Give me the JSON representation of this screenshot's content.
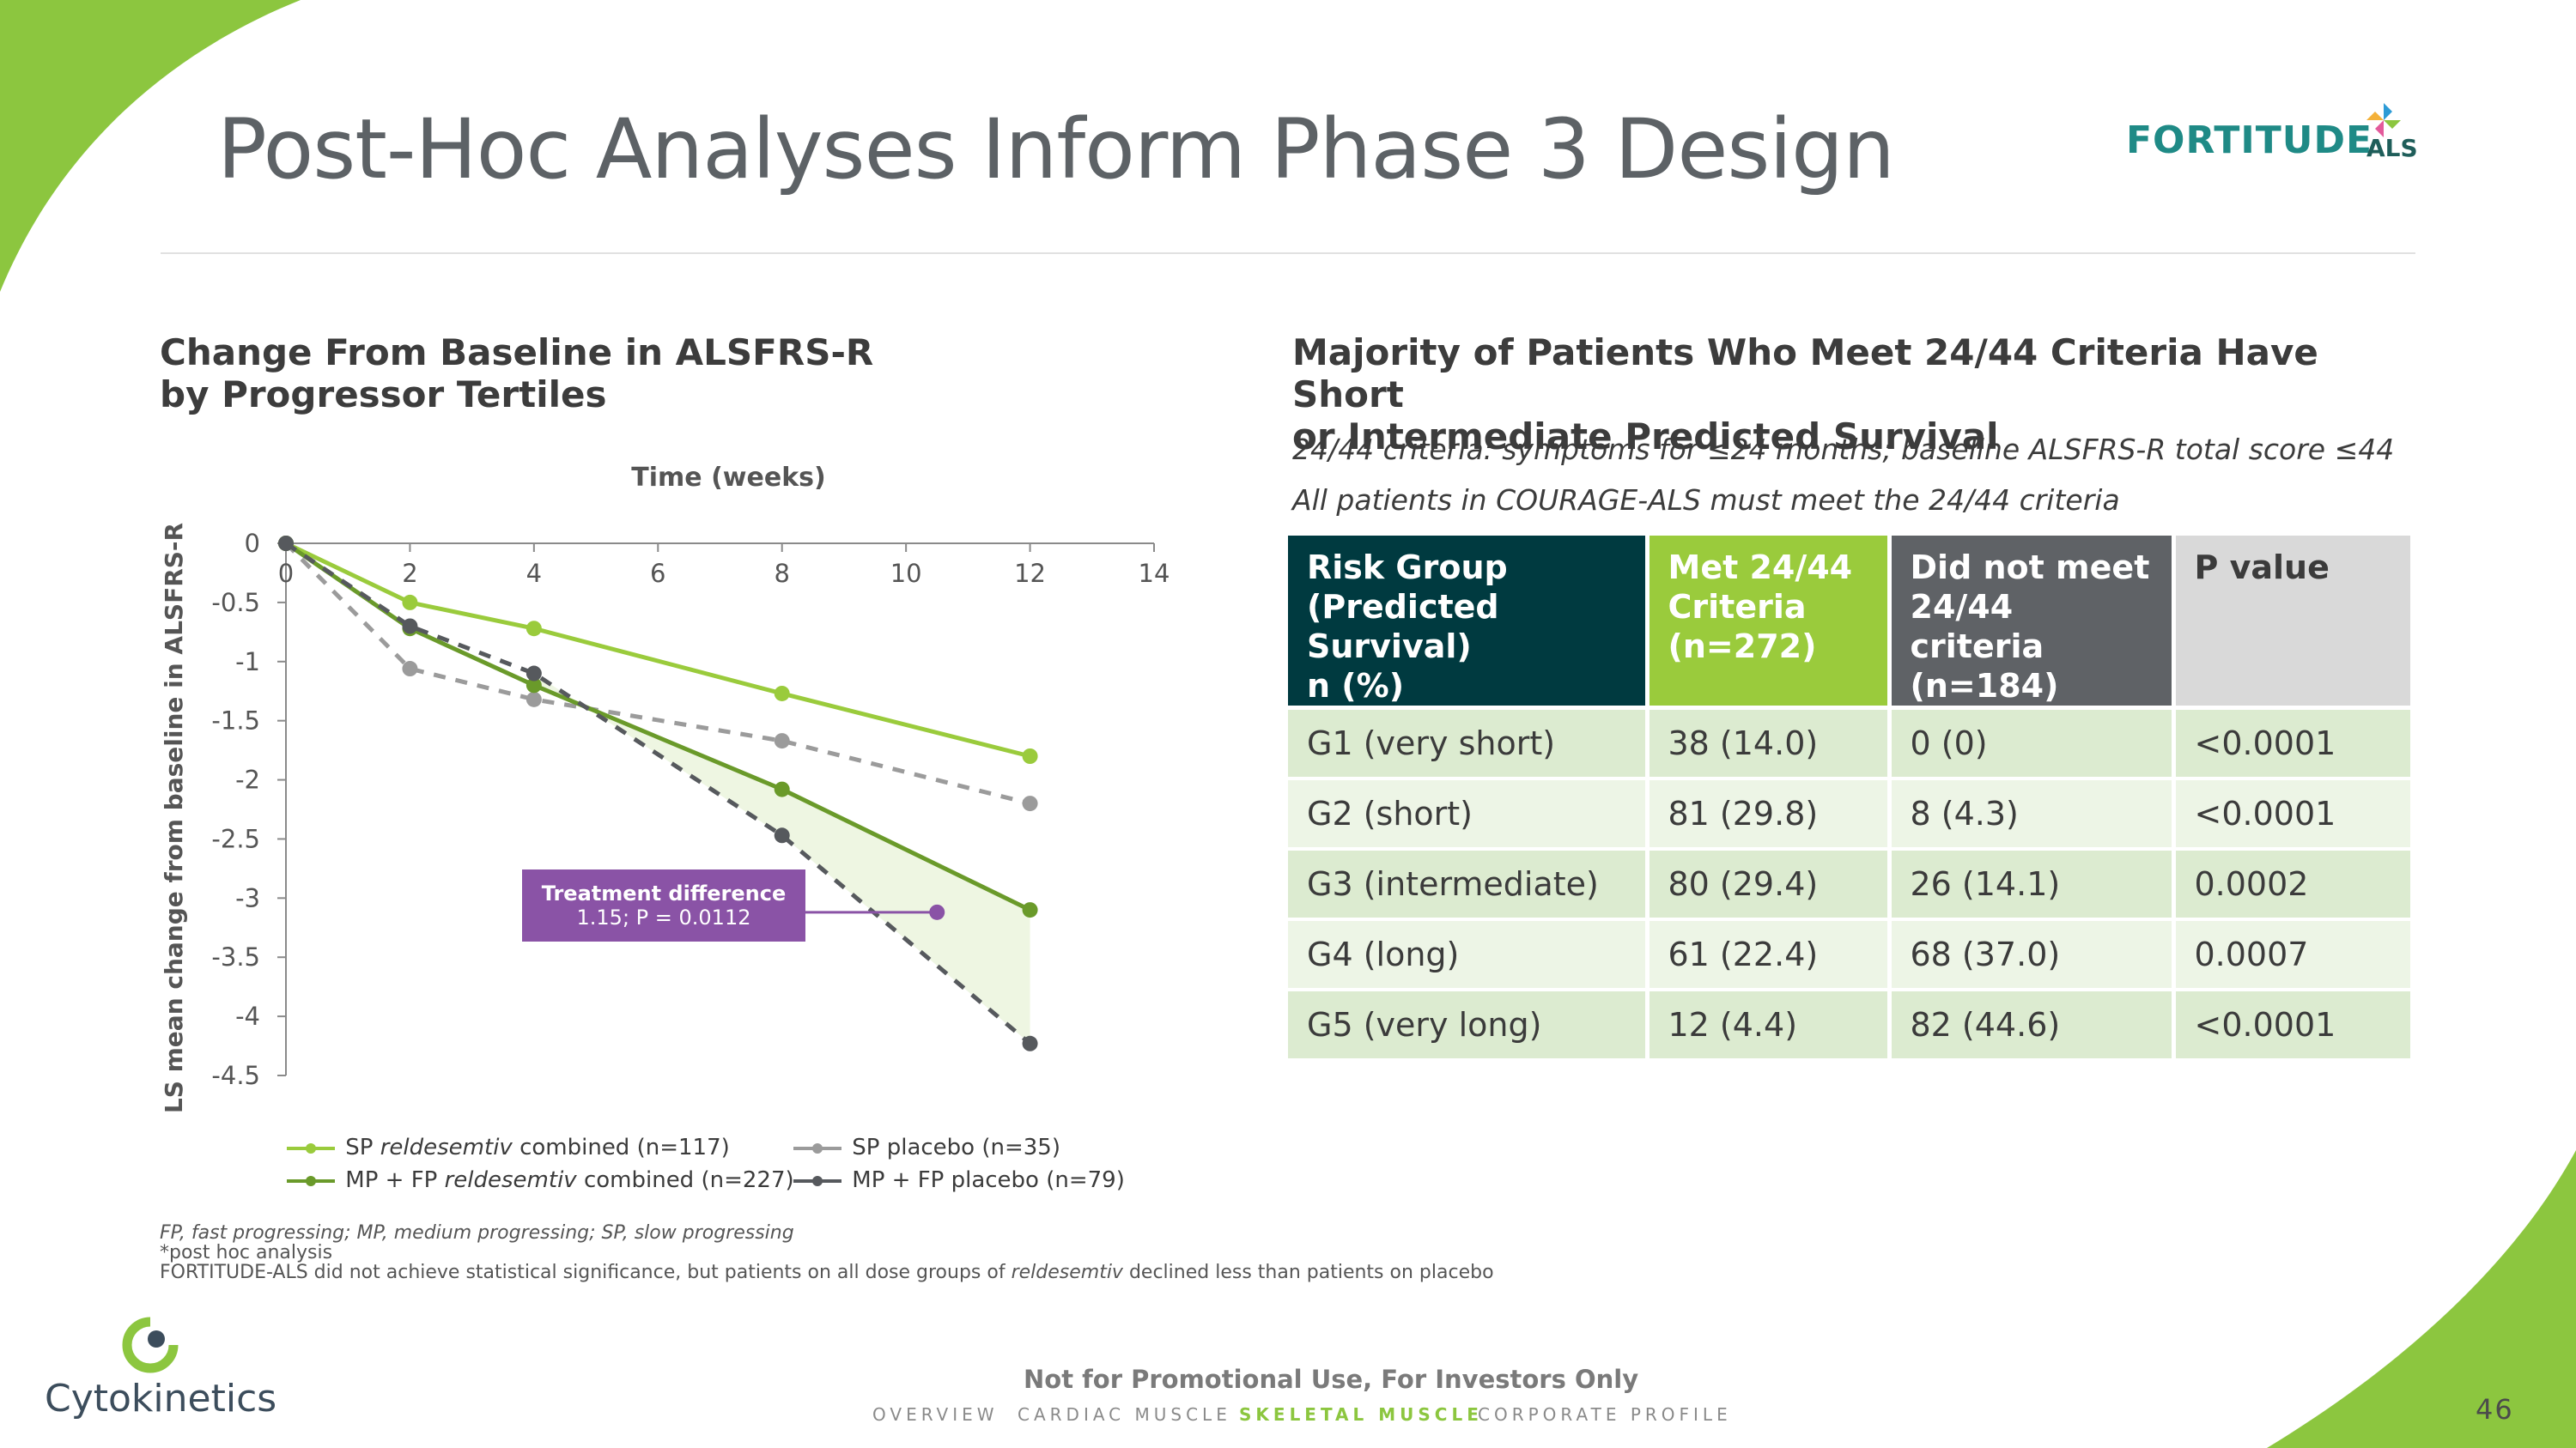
{
  "slide": {
    "title": "Post-Hoc Analyses Inform Phase 3 Design",
    "brand_logo_text": "FORTITUDE",
    "brand_logo_suffix": "ALS",
    "company": "Cytokinetics",
    "disclaimer": "Not for Promotional Use, For Investors Only",
    "page_number": "46",
    "colors": {
      "accent_green": "#8cc63f",
      "dark_teal": "#003a40",
      "purple": "#8a53a6"
    }
  },
  "nav": {
    "items": [
      {
        "label": "OVERVIEW",
        "active": false
      },
      {
        "label": "CARDIAC MUSCLE",
        "active": false
      },
      {
        "label": "SKELETAL MUSCLE",
        "active": true
      },
      {
        "label": "CORPORATE PROFILE",
        "active": false
      }
    ]
  },
  "left": {
    "heading_line1": "Change From Baseline in ALSFRS-R",
    "heading_line2": "by Progressor Tertiles"
  },
  "chart_data": {
    "type": "line",
    "title": "Change From Baseline in ALSFRS-R by Progressor Tertiles",
    "xlabel": "Time (weeks)",
    "ylabel": "LS mean change from baseline in ALSFRS-R",
    "xlim": [
      0,
      14
    ],
    "ylim": [
      -4.5,
      0
    ],
    "x_ticks": [
      "0",
      "2",
      "4",
      "6",
      "8",
      "10",
      "12",
      "14"
    ],
    "y_ticks": [
      "0",
      "-0.5",
      "-1",
      "-1.5",
      "-2",
      "-2.5",
      "-3",
      "-3.5",
      "-4",
      "-4.5"
    ],
    "x_axis_position": "top",
    "grid": false,
    "legend_position": "bottom",
    "series": [
      {
        "name": "SP reldesemtiv combined (n=117)",
        "name_prefix": "SP ",
        "name_italic": "reldesemtiv",
        "name_suffix": " combined (n=117)",
        "color": "#9acb3c",
        "dash": false,
        "x": [
          0,
          2,
          4,
          8,
          12
        ],
        "y": [
          0,
          -0.5,
          -0.72,
          -1.27,
          -1.8
        ]
      },
      {
        "name": "SP placebo (n=35)",
        "name_prefix": "SP placebo (n=35)",
        "name_italic": "",
        "name_suffix": "",
        "color": "#9b9b9b",
        "dash": true,
        "x": [
          0,
          2,
          4,
          8,
          12
        ],
        "y": [
          0,
          -1.06,
          -1.32,
          -1.67,
          -2.2
        ]
      },
      {
        "name": "MP + FP reldesemtiv combined (n=227)",
        "name_prefix": "MP + FP ",
        "name_italic": "reldesemtiv",
        "name_suffix": " combined (n=227)",
        "color": "#6a9a2a",
        "dash": false,
        "x": [
          0,
          2,
          4,
          8,
          12
        ],
        "y": [
          0,
          -0.72,
          -1.2,
          -2.08,
          -3.1
        ]
      },
      {
        "name": "MP + FP placebo (n=79)",
        "name_prefix": "MP + FP placebo (n=79)",
        "name_italic": "",
        "name_suffix": "",
        "color": "#56595d",
        "dash": true,
        "x": [
          0,
          2,
          4,
          8,
          12
        ],
        "y": [
          0,
          -0.7,
          -1.1,
          -2.47,
          -4.23
        ]
      }
    ],
    "shaded_region": {
      "between": [
        "MP + FP reldesemtiv combined (n=227)",
        "MP + FP placebo (n=79)"
      ],
      "from_x": 4,
      "color": "#eef6e2"
    },
    "annotation": {
      "line1": "Treatment difference",
      "line2": "1.15; P = 0.0112",
      "marker_x": 10.5,
      "marker_y": -3.12,
      "color": "#8a53a6"
    }
  },
  "right": {
    "heading_line1": "Majority of Patients Who Meet 24/44 Criteria Have Short",
    "heading_line2": "or Intermediate Predicted Survival",
    "criteria_note": "24/44 criteria: symptoms for ≤24 months; baseline ALSFRS-R total score ≤44",
    "courage_note": "All patients in COURAGE-ALS must meet the 24/44 criteria"
  },
  "table": {
    "headers": [
      [
        "Risk Group",
        "(Predicted Survival)",
        "n (%)"
      ],
      [
        "Met 24/44",
        "Criteria",
        "(n=272)"
      ],
      [
        "Did not meet",
        "24/44 criteria",
        "(n=184)"
      ],
      [
        "P value"
      ]
    ],
    "rows": [
      [
        "G1 (very short)",
        "38 (14.0)",
        "0 (0)",
        "<0.0001"
      ],
      [
        "G2 (short)",
        "81 (29.8)",
        "8 (4.3)",
        "<0.0001"
      ],
      [
        "G3 (intermediate)",
        "80 (29.4)",
        "26 (14.1)",
        "0.0002"
      ],
      [
        "G4 (long)",
        "61 (22.4)",
        "68 (37.0)",
        "0.0007"
      ],
      [
        "G5 (very long)",
        "12 (4.4)",
        "82 (44.6)",
        "<0.0001"
      ]
    ]
  },
  "footnotes": {
    "abbrev": "FP, fast progressing; MP, medium progressing; SP, slow progressing",
    "posthoc": "*post hoc analysis",
    "statement_prefix": "FORTITUDE-ALS did not achieve statistical significance, but patients on all dose groups of ",
    "statement_italic": "reldesemtiv",
    "statement_suffix": " declined less than patients on placebo"
  }
}
